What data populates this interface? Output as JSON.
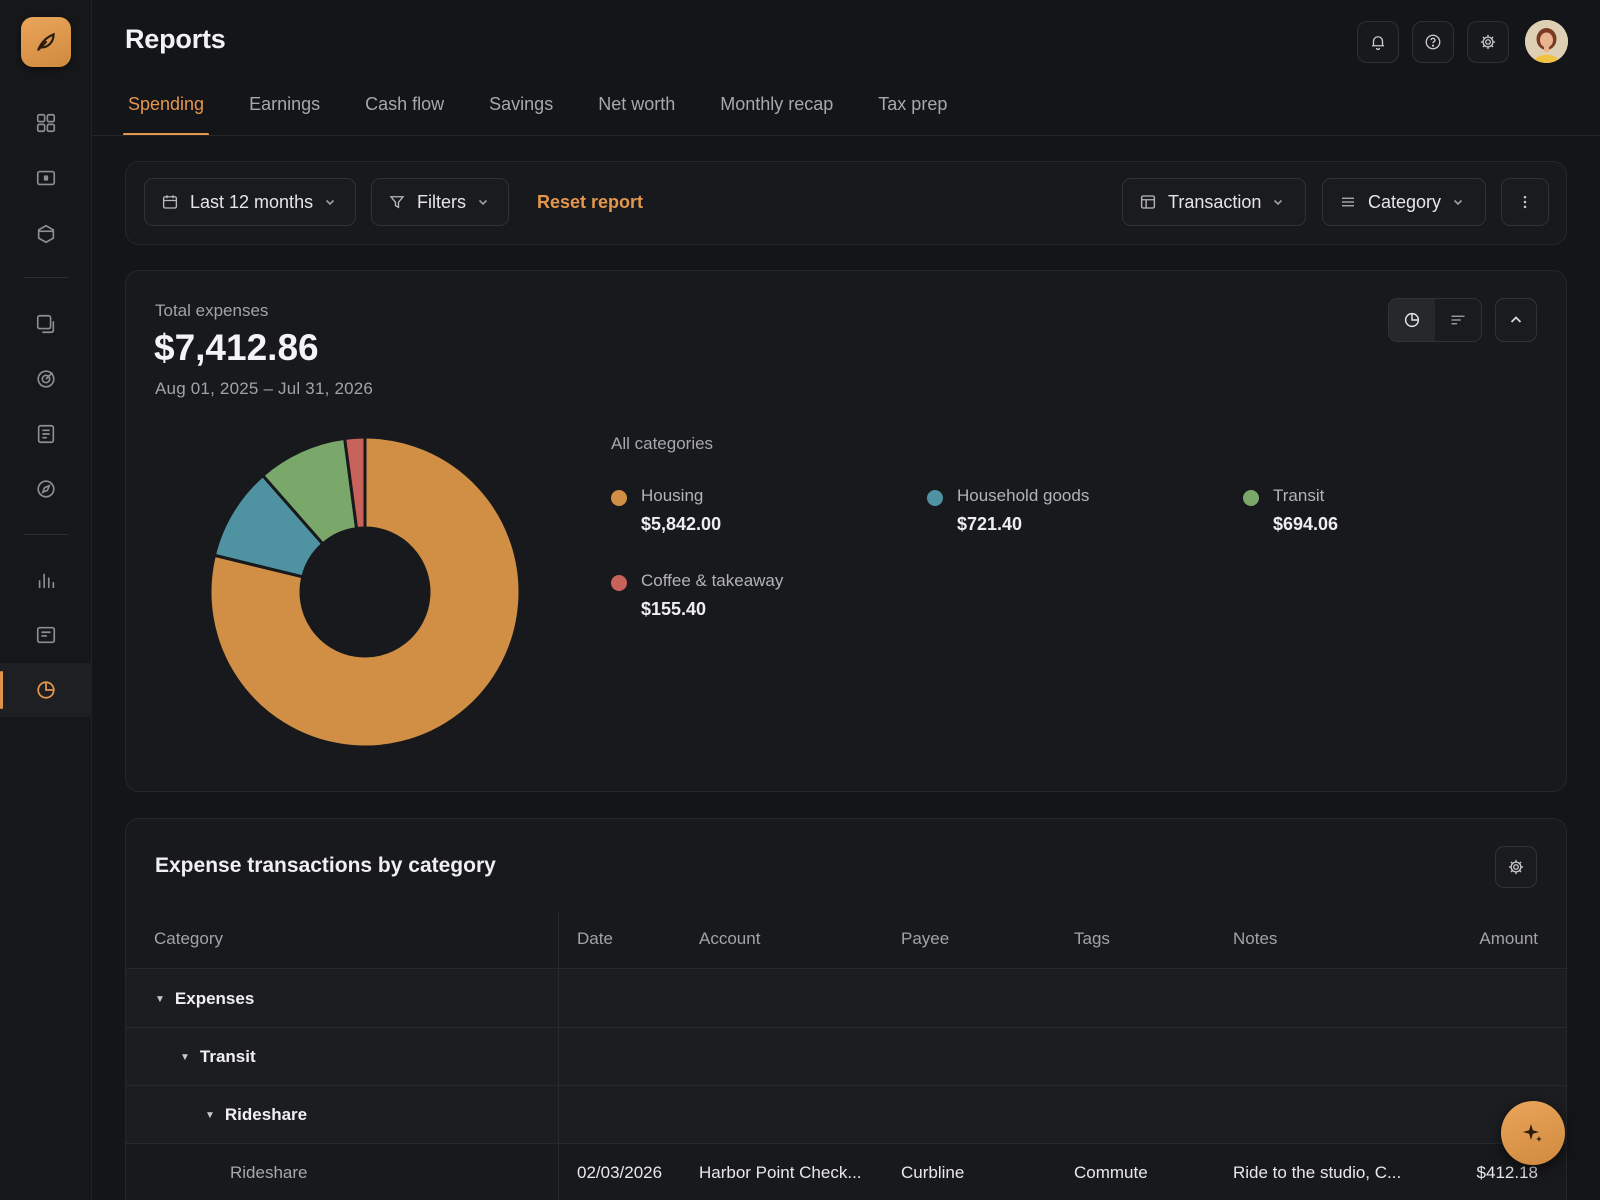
{
  "header": {
    "title": "Reports"
  },
  "tabs": [
    {
      "label": "Spending",
      "active": true
    },
    {
      "label": "Earnings"
    },
    {
      "label": "Cash flow"
    },
    {
      "label": "Savings"
    },
    {
      "label": "Net worth"
    },
    {
      "label": "Monthly recap"
    },
    {
      "label": "Tax prep"
    }
  ],
  "filters": {
    "date_range": "Last 12 months",
    "filters_label": "Filters",
    "reset_label": "Reset report",
    "view_label": "Transaction",
    "group_label": "Category"
  },
  "summary": {
    "total_label": "Total expenses",
    "total_value": "$7,412.86",
    "date_range": "Aug 01, 2025 – Jul 31, 2026"
  },
  "legend": {
    "title": "All categories",
    "items": [
      {
        "name": "Housing",
        "value": "$5,842.00",
        "color": "#d08f45"
      },
      {
        "name": "Household goods",
        "value": "$721.40",
        "color": "#4f93a3"
      },
      {
        "name": "Transit",
        "value": "$694.06",
        "color": "#7aa86a"
      },
      {
        "name": "Coffee & takeaway",
        "value": "$155.40",
        "color": "#c9625a"
      }
    ]
  },
  "chart_data": {
    "type": "pie",
    "categories": [
      "Housing",
      "Household goods",
      "Transit",
      "Coffee & takeaway"
    ],
    "values": [
      5842.0,
      721.4,
      694.06,
      155.4
    ],
    "colors": [
      "#d08f45",
      "#4f93a3",
      "#7aa86a",
      "#c9625a"
    ]
  },
  "table": {
    "title": "Expense transactions by category",
    "columns": [
      "Category",
      "Date",
      "Account",
      "Payee",
      "Tags",
      "Notes",
      "Amount"
    ],
    "groups": [
      {
        "label": "Expenses"
      },
      {
        "label": "Transit"
      },
      {
        "label": "Rideshare"
      }
    ],
    "rows": [
      {
        "category": "Rideshare",
        "date": "02/03/2026",
        "account": "Harbor Point Check...",
        "payee": "Curbline",
        "tags": "Commute",
        "notes": "Ride to the studio, C...",
        "amount": "$412.18"
      }
    ]
  },
  "icons": {
    "sidebar": [
      "dashboard-icon",
      "wallet-icon",
      "box-icon",
      "copy-icon",
      "target-icon",
      "ledger-icon",
      "compass-icon",
      "bar-chart-icon",
      "statement-icon",
      "pie-chart-icon"
    ],
    "header": [
      "bell-icon",
      "help-icon",
      "gear-icon"
    ]
  },
  "accent": "#e3964c"
}
